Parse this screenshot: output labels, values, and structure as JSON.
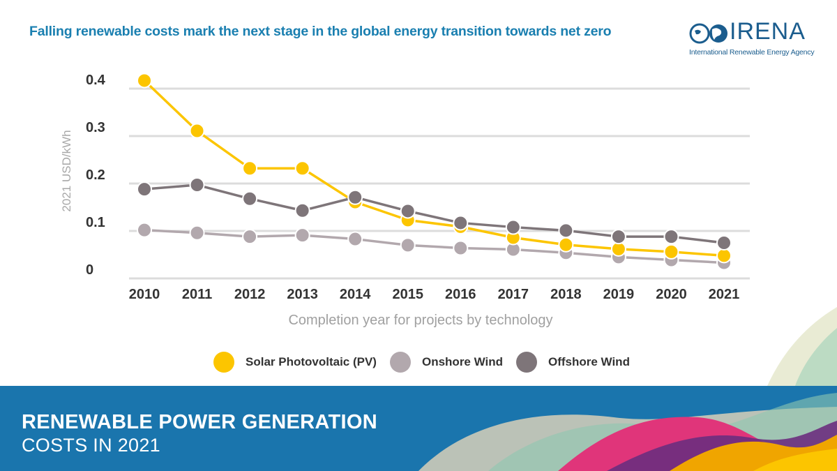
{
  "headline": "Falling renewable costs mark the next stage in the global energy transition towards net zero",
  "logo": {
    "name": "IRENA",
    "subtitle": "International Renewable Energy Agency"
  },
  "banner": {
    "line1": "RENEWABLE POWER GENERATION",
    "line2": "COSTS IN 2021"
  },
  "colors": {
    "solar": "#fcc500",
    "onshore": "#b2a8ad",
    "offshore": "#7e7579",
    "accent": "#1a7fb0",
    "banner": "#1a75ad"
  },
  "chart_data": {
    "type": "line",
    "title": "",
    "xlabel": "Completion year for projects by technology",
    "ylabel": "2021 USD/kWh",
    "ylim": [
      0,
      0.4
    ],
    "yticks": [
      {
        "value": 0,
        "label": "0"
      },
      {
        "value": 0.1,
        "label": "0.1"
      },
      {
        "value": 0.2,
        "label": "0.2"
      },
      {
        "value": 0.3,
        "label": "0.3"
      },
      {
        "value": 0.4,
        "label": "0.4"
      }
    ],
    "categories": [
      "2010",
      "2011",
      "2012",
      "2013",
      "2014",
      "2015",
      "2016",
      "2017",
      "2018",
      "2019",
      "2020",
      "2021"
    ],
    "legend_position": "bottom",
    "series": [
      {
        "name": "Solar Photovoltaic (PV)",
        "color": "#fcc500",
        "values": [
          0.417,
          0.311,
          0.232,
          0.232,
          0.161,
          0.123,
          0.109,
          0.086,
          0.071,
          0.062,
          0.056,
          0.048
        ]
      },
      {
        "name": "Onshore Wind",
        "color": "#b2a8ad",
        "values": [
          0.102,
          0.096,
          0.088,
          0.091,
          0.083,
          0.07,
          0.064,
          0.061,
          0.054,
          0.045,
          0.039,
          0.033
        ]
      },
      {
        "name": "Offshore Wind",
        "color": "#7e7579",
        "values": [
          0.188,
          0.197,
          0.168,
          0.143,
          0.171,
          0.142,
          0.117,
          0.108,
          0.101,
          0.088,
          0.088,
          0.075
        ]
      }
    ]
  }
}
